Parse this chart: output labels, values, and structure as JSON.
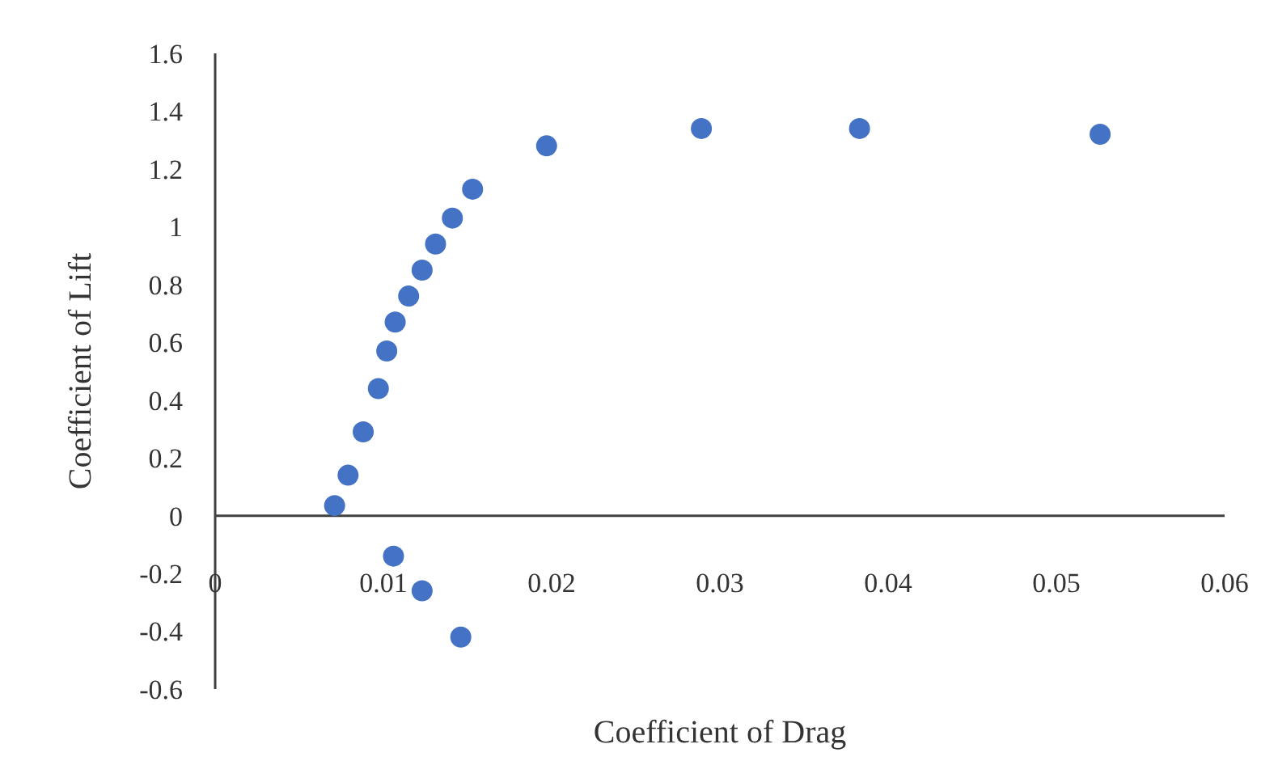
{
  "chart_data": {
    "type": "scatter",
    "xlabel": "Coefficient of Drag",
    "ylabel": "Coefficient of Lift",
    "x": [
      0.0071,
      0.0079,
      0.0088,
      0.0097,
      0.0102,
      0.0107,
      0.0115,
      0.0123,
      0.0131,
      0.0141,
      0.0153,
      0.0197,
      0.0289,
      0.0383,
      0.0526,
      0.0106,
      0.0123,
      0.0146
    ],
    "series": [
      {
        "color": "#4472c4",
        "values": [
          0.035,
          0.14,
          0.29,
          0.44,
          0.57,
          0.67,
          0.76,
          0.85,
          0.94,
          1.03,
          1.13,
          1.28,
          1.34,
          1.34,
          1.32,
          -0.14,
          -0.26,
          -0.42
        ]
      }
    ],
    "xlim": [
      0,
      0.06
    ],
    "xticks": [
      0,
      0.01,
      0.02,
      0.03,
      0.04,
      0.05,
      0.06
    ],
    "ylim": [
      -0.6,
      1.6
    ],
    "yticks": [
      -0.6,
      -0.4,
      -0.2,
      0,
      0.2,
      0.4,
      0.6,
      0.8,
      1,
      1.2,
      1.4,
      1.6
    ],
    "grid": false,
    "marker": "circle"
  }
}
